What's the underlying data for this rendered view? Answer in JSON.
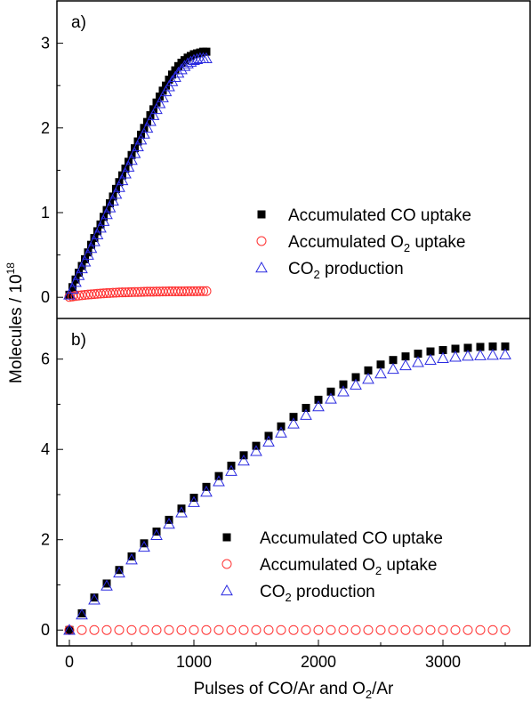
{
  "figure": {
    "xlabel": "Pulses of CO/Ar and O₂/Ar",
    "xlabel_parts": {
      "pre": "Pulses of CO/Ar and O",
      "sub": "2",
      "post": "/Ar"
    },
    "ylabel_parts": {
      "pre": "Molecules / 10",
      "sup": "18"
    }
  },
  "colors": {
    "co_uptake": "#000000",
    "o2_uptake": "#ff3030",
    "co2_production": "#2a2ae0"
  },
  "chart_data": [
    {
      "type": "scatter",
      "panel_label": "a)",
      "xlim": [
        -100,
        3700
      ],
      "ylim": [
        -0.25,
        3.5
      ],
      "yticks": [
        0,
        1,
        2,
        3
      ],
      "legend_position": "right-middle",
      "legend": [
        {
          "pre": "Accumulated CO uptake",
          "sub": "",
          "post": ""
        },
        {
          "pre": "Accumulated O",
          "sub": "2",
          "post": " uptake"
        },
        {
          "pre": "CO",
          "sub": "2",
          "post": " production"
        }
      ],
      "x": [
        0,
        25,
        50,
        75,
        100,
        125,
        150,
        175,
        200,
        225,
        250,
        275,
        300,
        325,
        350,
        375,
        400,
        425,
        450,
        475,
        500,
        525,
        550,
        575,
        600,
        625,
        650,
        675,
        700,
        725,
        750,
        775,
        800,
        825,
        850,
        875,
        900,
        925,
        950,
        975,
        1000,
        1025,
        1050,
        1075,
        1100
      ],
      "series": [
        {
          "key": "co_uptake",
          "name": "Accumulated CO uptake",
          "marker": "filled-square",
          "values": [
            0.03,
            0.12,
            0.21,
            0.29,
            0.37,
            0.45,
            0.53,
            0.62,
            0.7,
            0.78,
            0.86,
            0.95,
            1.03,
            1.11,
            1.19,
            1.28,
            1.36,
            1.44,
            1.52,
            1.6,
            1.68,
            1.76,
            1.84,
            1.92,
            2.0,
            2.07,
            2.15,
            2.22,
            2.3,
            2.37,
            2.44,
            2.5,
            2.57,
            2.63,
            2.68,
            2.73,
            2.77,
            2.8,
            2.83,
            2.85,
            2.87,
            2.88,
            2.89,
            2.9,
            2.9
          ]
        },
        {
          "key": "o2_uptake",
          "name": "Accumulated O₂ uptake",
          "marker": "open-circle",
          "values": [
            0.005,
            0.01,
            0.015,
            0.02,
            0.024,
            0.028,
            0.032,
            0.035,
            0.038,
            0.041,
            0.044,
            0.047,
            0.049,
            0.051,
            0.053,
            0.055,
            0.057,
            0.058,
            0.059,
            0.06,
            0.061,
            0.062,
            0.063,
            0.064,
            0.065,
            0.066,
            0.067,
            0.067,
            0.068,
            0.068,
            0.069,
            0.069,
            0.07,
            0.07,
            0.07,
            0.071,
            0.071,
            0.071,
            0.072,
            0.072,
            0.072,
            0.072,
            0.073,
            0.073,
            0.073
          ]
        },
        {
          "key": "co2_production",
          "name": "CO₂ production",
          "marker": "open-triangle",
          "values": [
            0.03,
            0.1,
            0.18,
            0.26,
            0.34,
            0.42,
            0.5,
            0.58,
            0.66,
            0.74,
            0.82,
            0.9,
            0.98,
            1.06,
            1.14,
            1.22,
            1.3,
            1.38,
            1.46,
            1.54,
            1.62,
            1.7,
            1.78,
            1.86,
            1.93,
            2.0,
            2.08,
            2.15,
            2.22,
            2.29,
            2.36,
            2.43,
            2.49,
            2.55,
            2.6,
            2.65,
            2.69,
            2.73,
            2.76,
            2.78,
            2.8,
            2.81,
            2.82,
            2.82,
            2.82
          ]
        }
      ]
    },
    {
      "type": "scatter",
      "panel_label": "b)",
      "xlim": [
        -100,
        3700
      ],
      "ylim": [
        -0.35,
        6.9
      ],
      "yticks": [
        0,
        2,
        4,
        6
      ],
      "xticks": [
        0,
        1000,
        2000,
        3000
      ],
      "legend_position": "right-bottom",
      "legend": [
        {
          "pre": "Accumulated CO uptake",
          "sub": "",
          "post": ""
        },
        {
          "pre": "Accumulated O",
          "sub": "2",
          "post": " uptake"
        },
        {
          "pre": "CO",
          "sub": "2",
          "post": " production"
        }
      ],
      "x": [
        0,
        100,
        200,
        300,
        400,
        500,
        600,
        700,
        800,
        900,
        1000,
        1100,
        1200,
        1300,
        1400,
        1500,
        1600,
        1700,
        1800,
        1900,
        2000,
        2100,
        2200,
        2300,
        2400,
        2500,
        2600,
        2700,
        2800,
        2900,
        3000,
        3100,
        3200,
        3300,
        3400,
        3500
      ],
      "series": [
        {
          "key": "co_uptake",
          "name": "Accumulated CO uptake",
          "marker": "filled-square",
          "values": [
            0.0,
            0.37,
            0.72,
            1.03,
            1.33,
            1.63,
            1.92,
            2.18,
            2.44,
            2.69,
            2.93,
            3.17,
            3.41,
            3.64,
            3.87,
            4.08,
            4.3,
            4.51,
            4.72,
            4.92,
            5.1,
            5.28,
            5.44,
            5.6,
            5.75,
            5.88,
            5.98,
            6.06,
            6.12,
            6.17,
            6.2,
            6.23,
            6.25,
            6.27,
            6.28,
            6.28
          ]
        },
        {
          "key": "o2_uptake",
          "name": "Accumulated O₂ uptake",
          "marker": "open-circle",
          "values": [
            0.0,
            0.0,
            0.0,
            0.0,
            0.0,
            0.0,
            0.0,
            0.0,
            0.0,
            0.0,
            0.0,
            0.0,
            0.0,
            0.0,
            0.0,
            0.0,
            0.0,
            0.0,
            0.0,
            0.0,
            0.0,
            0.0,
            0.0,
            0.0,
            0.0,
            0.0,
            0.0,
            0.0,
            0.0,
            0.0,
            0.0,
            0.0,
            0.0,
            0.0,
            0.0,
            0.0
          ]
        },
        {
          "key": "co2_production",
          "name": "CO₂ production",
          "marker": "open-triangle",
          "values": [
            0.0,
            0.34,
            0.67,
            0.98,
            1.27,
            1.56,
            1.84,
            2.1,
            2.35,
            2.6,
            2.83,
            3.06,
            3.29,
            3.52,
            3.75,
            3.96,
            4.17,
            4.37,
            4.57,
            4.76,
            4.95,
            5.12,
            5.28,
            5.43,
            5.56,
            5.68,
            5.78,
            5.86,
            5.93,
            5.98,
            6.02,
            6.05,
            6.07,
            6.08,
            6.09,
            6.1
          ]
        }
      ]
    }
  ]
}
